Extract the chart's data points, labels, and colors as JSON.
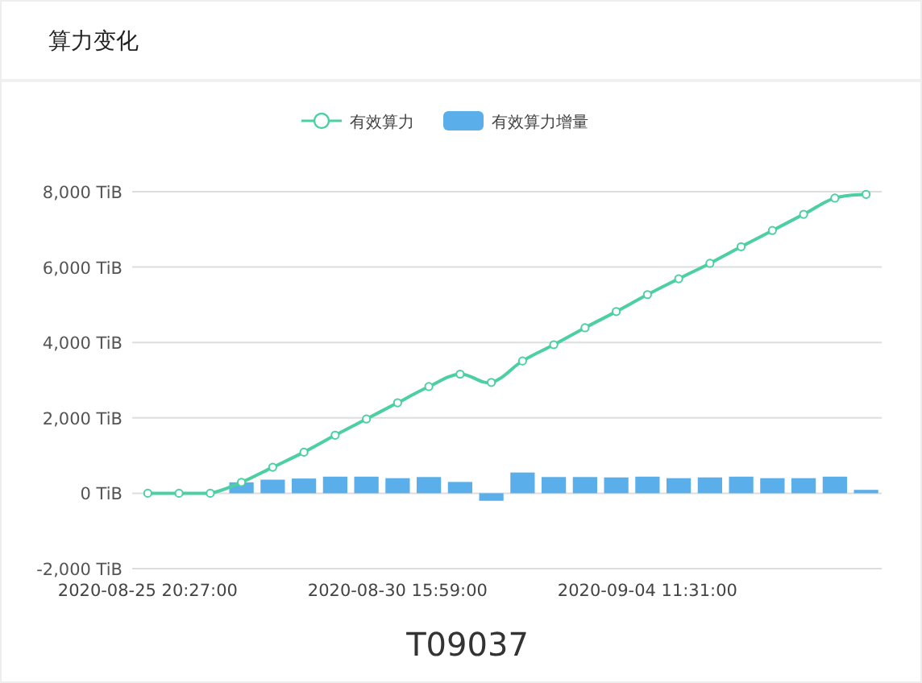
{
  "chart_data": {
    "type": "bar",
    "title": "算力变化",
    "categories": [
      "2020-08-25 20:27:00",
      null,
      null,
      null,
      null,
      null,
      null,
      null,
      "2020-08-30 15:59:00",
      null,
      null,
      null,
      null,
      null,
      null,
      null,
      "2020-09-04 11:31:00",
      null,
      null,
      null,
      null,
      null,
      null,
      null
    ],
    "series": [
      {
        "name": "有效算力",
        "type": "line",
        "color": "#4ccfa3",
        "marker": "circle",
        "values": [
          0,
          0,
          0,
          290,
          690,
          1090,
          1540,
          1970,
          2400,
          2830,
          3160,
          2940,
          3510,
          3940,
          4390,
          4820,
          5270,
          5690,
          6100,
          6540,
          6970,
          7400,
          7830,
          7930
        ]
      },
      {
        "name": "有效算力增量",
        "color": "#5aaeea",
        "values": [
          null,
          null,
          null,
          290,
          360,
          390,
          440,
          440,
          400,
          430,
          300,
          -200,
          550,
          430,
          430,
          420,
          440,
          400,
          420,
          440,
          400,
          400,
          440,
          90
        ]
      }
    ],
    "ylim": [
      -2000,
      8000
    ],
    "yticks": [
      {
        "value": -2000,
        "label": "-2,000 TiB"
      },
      {
        "value": 0,
        "label": "0 TiB"
      },
      {
        "value": 2000,
        "label": "2,000 TiB"
      },
      {
        "value": 4000,
        "label": "4,000 TiB"
      },
      {
        "value": 6000,
        "label": "6,000 TiB"
      },
      {
        "value": 8000,
        "label": "8,000 TiB"
      }
    ],
    "grid": "y",
    "legend": "top",
    "annotations": [
      "T09037"
    ]
  }
}
